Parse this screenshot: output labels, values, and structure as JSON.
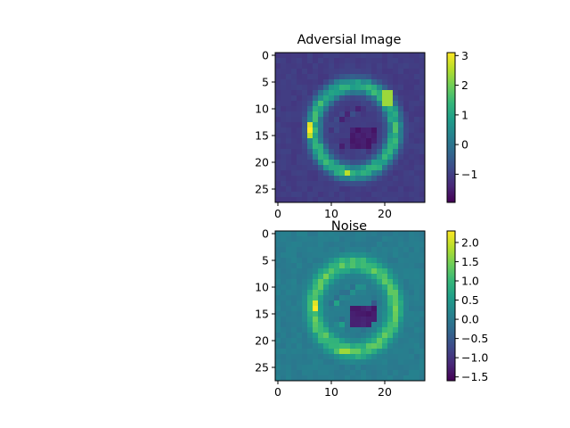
{
  "chart_data": [
    {
      "type": "heatmap",
      "title": "Adversial Image",
      "xlabel": "",
      "ylabel": "",
      "grid": false,
      "image_shape": [
        28,
        28
      ],
      "x_ticks": [
        0,
        10,
        20
      ],
      "y_ticks": [
        0,
        5,
        10,
        15,
        20,
        25
      ],
      "xlim": [
        -0.5,
        27.5
      ],
      "ylim": [
        27.5,
        -0.5
      ],
      "colormap": "viridis",
      "colorbar": {
        "range": [
          -1.95,
          3.1
        ],
        "ticks": [
          -1,
          0,
          1,
          2,
          3
        ]
      },
      "values": []
    },
    {
      "type": "heatmap",
      "title": "Noise",
      "xlabel": "",
      "ylabel": "",
      "grid": false,
      "image_shape": [
        28,
        28
      ],
      "x_ticks": [
        0,
        10,
        20
      ],
      "y_ticks": [
        0,
        5,
        10,
        15,
        20,
        25
      ],
      "xlim": [
        -0.5,
        27.5
      ],
      "ylim": [
        27.5,
        -0.5
      ],
      "colormap": "viridis",
      "colorbar": {
        "range": [
          -1.6,
          2.3
        ],
        "ticks": [
          -1.5,
          -1.0,
          -0.5,
          0.0,
          0.5,
          1.0,
          1.5,
          2.0
        ]
      },
      "values": []
    }
  ],
  "colors": {
    "viridis": [
      "#440154",
      "#482878",
      "#3e4989",
      "#31688e",
      "#26828e",
      "#1f9e89",
      "#35b779",
      "#6ece58",
      "#b5de2b",
      "#fde725"
    ]
  }
}
